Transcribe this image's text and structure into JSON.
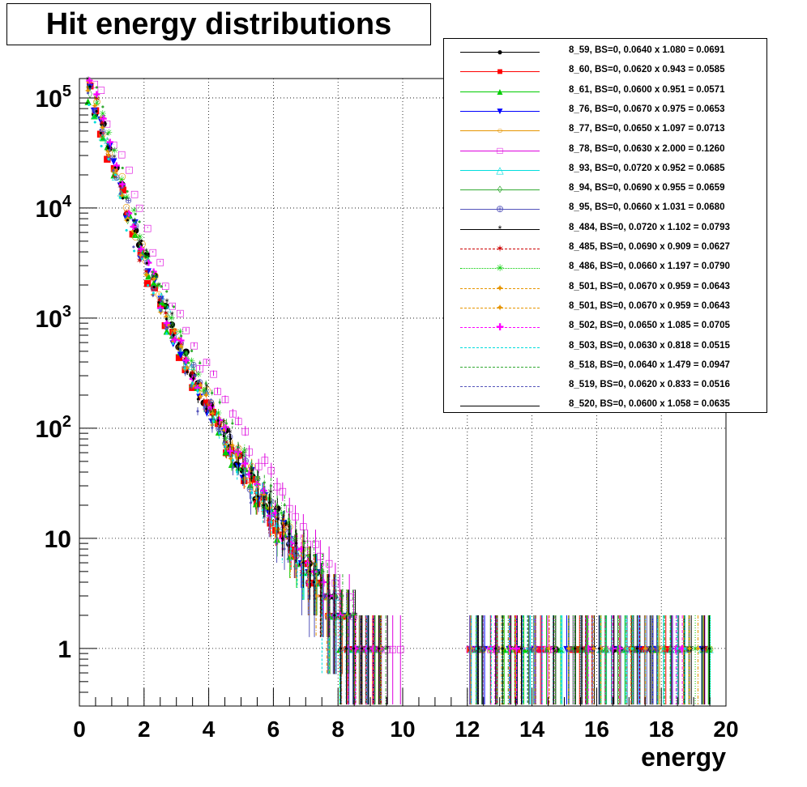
{
  "chart_data": {
    "type": "scatter",
    "title": "Hit energy distributions",
    "xlabel": "energy",
    "ylabel": "",
    "xlim": [
      0,
      20
    ],
    "ylim": [
      0.3,
      150000
    ],
    "y_scale": "log",
    "grid": true,
    "legend_position": "top-right",
    "x_ticks": [
      "0",
      "2",
      "4",
      "6",
      "8",
      "10",
      "12",
      "14",
      "16",
      "18",
      "20"
    ],
    "y_ticks": [
      {
        "value": 1,
        "label": "1"
      },
      {
        "value": 10,
        "label": "10"
      },
      {
        "value": 100,
        "label": "10^2"
      },
      {
        "value": 1000,
        "label": "10^3"
      },
      {
        "value": 10000,
        "label": "10^4"
      },
      {
        "value": 100000,
        "label": "10^5"
      }
    ],
    "series": [
      {
        "name": "8_59, BS=0, 0.0640 x 1.080 = 0.0691",
        "color": "#000000",
        "marker": "●",
        "line": "solid",
        "scale": 0.0691
      },
      {
        "name": "8_60, BS=0, 0.0620 x 0.943 = 0.0585",
        "color": "#ff0000",
        "marker": "■",
        "line": "solid",
        "scale": 0.0585
      },
      {
        "name": "8_61, BS=0, 0.0600 x 0.951 = 0.0571",
        "color": "#00cc00",
        "marker": "▲",
        "line": "solid",
        "scale": 0.0571
      },
      {
        "name": "8_76, BS=0, 0.0670 x 0.975 = 0.0653",
        "color": "#0000ff",
        "marker": "▼",
        "line": "solid",
        "scale": 0.0653
      },
      {
        "name": "8_77, BS=0, 0.0650 x 1.097 = 0.0713",
        "color": "#e69500",
        "marker": "○",
        "line": "solid",
        "scale": 0.0713
      },
      {
        "name": "8_78, BS=0, 0.0630 x 2.000 = 0.1260",
        "color": "#dd00dd",
        "marker": "□",
        "line": "solid",
        "scale": 0.126
      },
      {
        "name": "8_93, BS=0, 0.0720 x 0.952 = 0.0685",
        "color": "#00dddd",
        "marker": "△",
        "line": "solid",
        "scale": 0.0685
      },
      {
        "name": "8_94, BS=0, 0.0690 x 0.955 = 0.0659",
        "color": "#33aa33",
        "marker": "◊",
        "line": "solid",
        "scale": 0.0659
      },
      {
        "name": "8_95, BS=0, 0.0660 x 1.031 = 0.0680",
        "color": "#5555bb",
        "marker": "⊕",
        "line": "solid",
        "scale": 0.068
      },
      {
        "name": "8_484, BS=0, 0.0720 x 1.102 = 0.0793",
        "color": "#000000",
        "marker": "*",
        "line": "solid",
        "scale": 0.0793
      },
      {
        "name": "8_485, BS=0, 0.0690 x 0.909 = 0.0627",
        "color": "#cc0000",
        "marker": "✶",
        "line": "dashed",
        "scale": 0.0627
      },
      {
        "name": "8_486, BS=0, 0.0660 x 1.197 = 0.0790",
        "color": "#00cc00",
        "marker": "✳",
        "line": "dotted",
        "scale": 0.079
      },
      {
        "name": "8_501, BS=0, 0.0670 x 0.959 = 0.0643",
        "color": "#e69500",
        "marker": "✦",
        "line": "dashdot",
        "scale": 0.0643
      },
      {
        "name": "8_501, BS=0, 0.0670 x 0.959 = 0.0643",
        "color": "#e69500",
        "marker": "✦",
        "line": "dashdot",
        "scale": 0.0643
      },
      {
        "name": "8_502, BS=0, 0.0650 x 1.085 = 0.0705",
        "color": "#ff00ff",
        "marker": "✚",
        "line": "dashdot",
        "scale": 0.0705
      },
      {
        "name": "8_503, BS=0, 0.0630 x 0.818 = 0.0515",
        "color": "#00dddd",
        "marker": "",
        "line": "dashed",
        "scale": 0.0515
      },
      {
        "name": "8_518, BS=0, 0.0640 x 1.479 = 0.0947",
        "color": "#33aa33",
        "marker": "",
        "line": "dashdot",
        "scale": 0.0947
      },
      {
        "name": "8_519, BS=0, 0.0620 x 0.833 = 0.0516",
        "color": "#5555bb",
        "marker": "",
        "line": "longdash",
        "scale": 0.0516
      },
      {
        "name": "8_520, BS=0, 0.0600 x 1.058 = 0.0635",
        "color": "#000000",
        "marker": "",
        "line": "solid",
        "scale": 0.0635
      }
    ]
  }
}
